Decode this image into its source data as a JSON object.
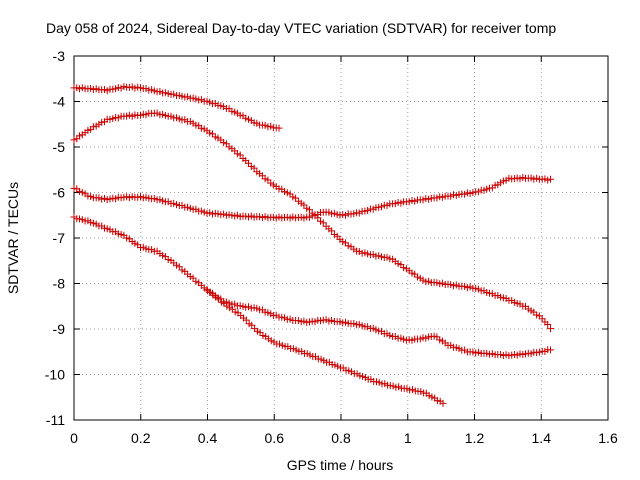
{
  "chart_data": {
    "type": "scatter",
    "title": "Day 058 of 2024, Sidereal Day-to-day VTEC variation (SDTVAR) for receiver tomp",
    "xlabel": "GPS time / hours",
    "ylabel": "SDTVAR / TECUs",
    "xlim": [
      0,
      1.6
    ],
    "ylim": [
      -11,
      -3
    ],
    "xticks": [
      0,
      0.2,
      0.4,
      0.6,
      0.8,
      1,
      1.2,
      1.4,
      1.6
    ],
    "xtick_labels": [
      "0",
      "0.2",
      "0.4",
      "0.6",
      "0.8",
      "1",
      "1.2",
      "1.4",
      "1.6"
    ],
    "yticks": [
      -11,
      -10,
      -9,
      -8,
      -7,
      -6,
      -5,
      -4,
      -3
    ],
    "ytick_labels": [
      "-11",
      "-10",
      "-9",
      "-8",
      "-7",
      "-6",
      "-5",
      "-4",
      "-3"
    ],
    "grid": true,
    "marker": "plus",
    "color": "#cc0000",
    "step": 0.0083,
    "series": [
      {
        "name": "track-1",
        "anchors": [
          [
            0,
            -3.7
          ],
          [
            0.05,
            -3.72
          ],
          [
            0.1,
            -3.75
          ],
          [
            0.15,
            -3.68
          ],
          [
            0.2,
            -3.7
          ],
          [
            0.25,
            -3.78
          ],
          [
            0.3,
            -3.85
          ],
          [
            0.35,
            -3.92
          ],
          [
            0.4,
            -4.0
          ],
          [
            0.45,
            -4.12
          ],
          [
            0.5,
            -4.3
          ],
          [
            0.55,
            -4.5
          ],
          [
            0.62,
            -4.6
          ]
        ]
      },
      {
        "name": "track-2",
        "anchors": [
          [
            0,
            -4.85
          ],
          [
            0.05,
            -4.6
          ],
          [
            0.1,
            -4.4
          ],
          [
            0.15,
            -4.32
          ],
          [
            0.2,
            -4.3
          ],
          [
            0.24,
            -4.25
          ],
          [
            0.3,
            -4.35
          ],
          [
            0.35,
            -4.45
          ],
          [
            0.4,
            -4.65
          ],
          [
            0.45,
            -4.9
          ],
          [
            0.5,
            -5.2
          ],
          [
            0.55,
            -5.55
          ],
          [
            0.6,
            -5.85
          ],
          [
            0.65,
            -6.05
          ],
          [
            0.7,
            -6.35
          ],
          [
            0.75,
            -6.7
          ],
          [
            0.8,
            -7.05
          ],
          [
            0.85,
            -7.3
          ],
          [
            0.9,
            -7.38
          ],
          [
            0.95,
            -7.45
          ],
          [
            1.0,
            -7.7
          ],
          [
            1.05,
            -7.95
          ],
          [
            1.1,
            -8.0
          ],
          [
            1.2,
            -8.1
          ],
          [
            1.3,
            -8.35
          ],
          [
            1.35,
            -8.5
          ],
          [
            1.4,
            -8.75
          ],
          [
            1.43,
            -9.0
          ]
        ]
      },
      {
        "name": "track-3",
        "anchors": [
          [
            0,
            -5.9
          ],
          [
            0.05,
            -6.1
          ],
          [
            0.1,
            -6.15
          ],
          [
            0.15,
            -6.1
          ],
          [
            0.2,
            -6.1
          ],
          [
            0.25,
            -6.15
          ],
          [
            0.3,
            -6.25
          ],
          [
            0.35,
            -6.35
          ],
          [
            0.4,
            -6.45
          ],
          [
            0.5,
            -6.52
          ],
          [
            0.6,
            -6.55
          ],
          [
            0.7,
            -6.55
          ],
          [
            0.75,
            -6.42
          ],
          [
            0.8,
            -6.5
          ],
          [
            0.85,
            -6.45
          ],
          [
            0.9,
            -6.35
          ],
          [
            0.95,
            -6.25
          ],
          [
            1.0,
            -6.2
          ],
          [
            1.1,
            -6.1
          ],
          [
            1.2,
            -6.0
          ],
          [
            1.25,
            -5.9
          ],
          [
            1.3,
            -5.7
          ],
          [
            1.35,
            -5.68
          ],
          [
            1.43,
            -5.72
          ]
        ]
      },
      {
        "name": "track-4",
        "anchors": [
          [
            0,
            -6.55
          ],
          [
            0.05,
            -6.65
          ],
          [
            0.1,
            -6.8
          ],
          [
            0.15,
            -6.95
          ],
          [
            0.2,
            -7.2
          ],
          [
            0.25,
            -7.3
          ],
          [
            0.3,
            -7.55
          ],
          [
            0.35,
            -7.85
          ],
          [
            0.4,
            -8.15
          ],
          [
            0.45,
            -8.4
          ],
          [
            0.5,
            -8.5
          ],
          [
            0.55,
            -8.55
          ],
          [
            0.6,
            -8.7
          ],
          [
            0.65,
            -8.8
          ],
          [
            0.7,
            -8.85
          ],
          [
            0.75,
            -8.8
          ],
          [
            0.8,
            -8.85
          ],
          [
            0.85,
            -8.9
          ],
          [
            0.9,
            -9.0
          ],
          [
            0.95,
            -9.15
          ],
          [
            1.0,
            -9.25
          ],
          [
            1.05,
            -9.2
          ],
          [
            1.08,
            -9.15
          ],
          [
            1.12,
            -9.35
          ],
          [
            1.18,
            -9.5
          ],
          [
            1.25,
            -9.55
          ],
          [
            1.3,
            -9.58
          ],
          [
            1.35,
            -9.55
          ],
          [
            1.4,
            -9.5
          ],
          [
            1.43,
            -9.45
          ]
        ]
      },
      {
        "name": "track-5",
        "anchors": [
          [
            0.4,
            -8.15
          ],
          [
            0.45,
            -8.45
          ],
          [
            0.5,
            -8.7
          ],
          [
            0.55,
            -9.05
          ],
          [
            0.6,
            -9.3
          ],
          [
            0.65,
            -9.42
          ],
          [
            0.7,
            -9.55
          ],
          [
            0.75,
            -9.7
          ],
          [
            0.8,
            -9.85
          ],
          [
            0.85,
            -10.0
          ],
          [
            0.9,
            -10.15
          ],
          [
            0.95,
            -10.25
          ],
          [
            1.0,
            -10.32
          ],
          [
            1.05,
            -10.4
          ],
          [
            1.11,
            -10.65
          ]
        ]
      }
    ]
  }
}
